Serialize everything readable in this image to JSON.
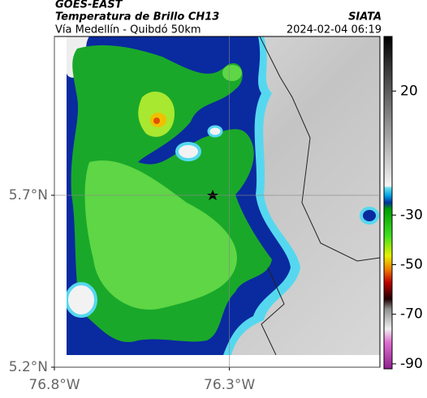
{
  "header": {
    "product": "GOES-EAST",
    "title": "Temperatura de Brillo CH13",
    "subtitle": "Vía Medellín - Quibdó 50km",
    "source": "SIATA",
    "timestamp": "2024-02-04 06:19"
  },
  "map": {
    "xlim": [
      -76.8,
      -75.87
    ],
    "ylim": [
      5.2,
      6.162
    ],
    "xticks": [
      {
        "value": -76.8,
        "label": "76.8°W"
      },
      {
        "value": -76.3,
        "label": "76.3°W"
      }
    ],
    "yticks": [
      {
        "value": 5.7,
        "label": "5.7°N"
      },
      {
        "value": 5.2,
        "label": "5.2°N"
      }
    ]
  },
  "colorbar": {
    "lim": [
      -92,
      42
    ],
    "ticks": [
      20,
      -30,
      -50,
      -70,
      -90
    ]
  }
}
